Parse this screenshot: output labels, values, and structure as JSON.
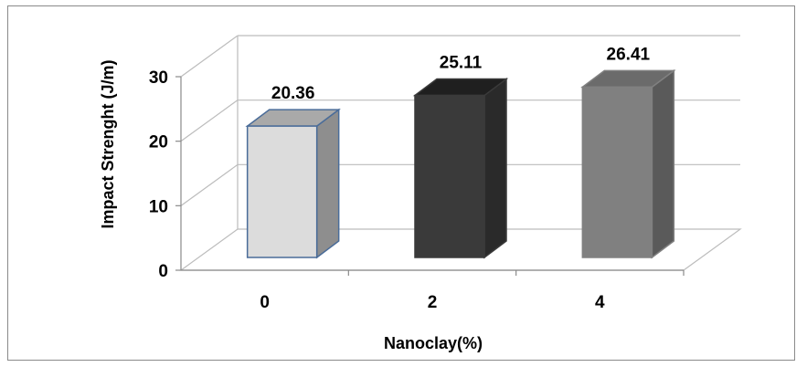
{
  "chart_data": {
    "type": "bar",
    "categories": [
      "0",
      "2",
      "4"
    ],
    "values": [
      20.36,
      25.11,
      26.41
    ],
    "data_labels": [
      "20.36",
      "25.11",
      "26.41"
    ],
    "xlabel": "Nanoclay(%)",
    "ylabel": "Impact Strenght (J/m)",
    "ylim": [
      0,
      30
    ],
    "yticks": [
      "0",
      "10",
      "20",
      "30"
    ],
    "grid": true,
    "style": "3d-column",
    "bar_colors": [
      {
        "front": "#dcdcdc",
        "side": "#8e8e8e",
        "top": "#a9a9a9",
        "stroke": "#4a6c99"
      },
      {
        "front": "#3a3a3a",
        "side": "#2a2a2a",
        "top": "#1f1f1f",
        "stroke": "#3a3a3a"
      },
      {
        "front": "#808080",
        "side": "#5a5a5a",
        "top": "#6b6b6b",
        "stroke": "#808080"
      }
    ]
  }
}
